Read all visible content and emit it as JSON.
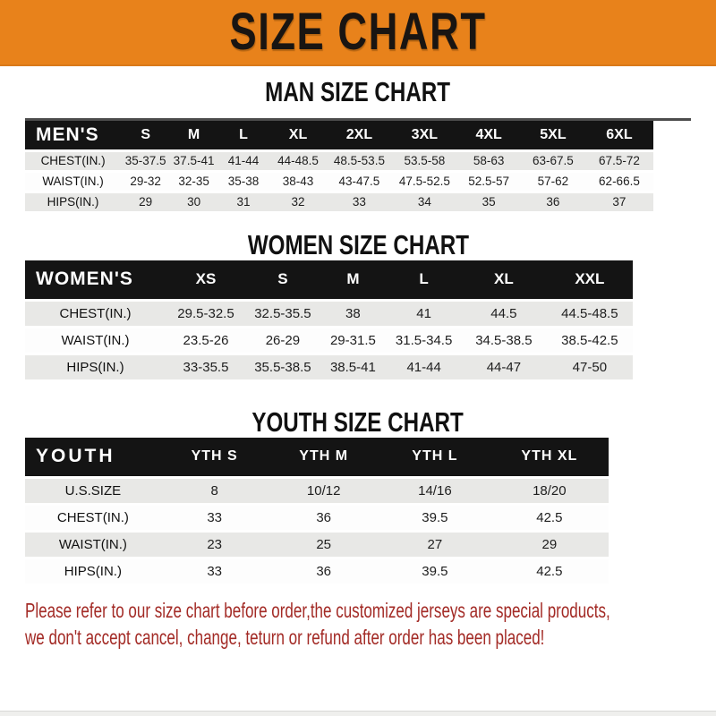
{
  "banner": {
    "title": "SIZE CHART",
    "bg_color": "#E8821B"
  },
  "colors": {
    "table_header_bg": "#141414",
    "row_stripe": "#e8e8e6",
    "disclaimer_red": "#a32b26"
  },
  "sections": [
    {
      "id": "men",
      "heading": "MAN SIZE CHART",
      "table": {
        "header": [
          "MEN'S",
          "S",
          "M",
          "L",
          "XL",
          "2XL",
          "3XL",
          "4XL",
          "5XL",
          "6XL"
        ],
        "rows": [
          [
            "CHEST(IN.)",
            "35-37.5",
            "37.5-41",
            "41-44",
            "44-48.5",
            "48.5-53.5",
            "53.5-58",
            "58-63",
            "63-67.5",
            "67.5-72"
          ],
          [
            "WAIST(IN.)",
            "29-32",
            "32-35",
            "35-38",
            "38-43",
            "43-47.5",
            "47.5-52.5",
            "52.5-57",
            "57-62",
            "62-66.5"
          ],
          [
            "HIPS(IN.)",
            "29",
            "30",
            "31",
            "32",
            "33",
            "34",
            "35",
            "36",
            "37"
          ]
        ]
      }
    },
    {
      "id": "women",
      "heading": "WOMEN SIZE CHART",
      "table": {
        "header": [
          "WOMEN'S",
          "XS",
          "S",
          "M",
          "L",
          "XL",
          "XXL"
        ],
        "rows": [
          [
            "CHEST(IN.)",
            "29.5-32.5",
            "32.5-35.5",
            "38",
            "41",
            "44.5",
            "44.5-48.5"
          ],
          [
            "WAIST(IN.)",
            "23.5-26",
            "26-29",
            "29-31.5",
            "31.5-34.5",
            "34.5-38.5",
            "38.5-42.5"
          ],
          [
            "HIPS(IN.)",
            "33-35.5",
            "35.5-38.5",
            "38.5-41",
            "41-44",
            "44-47",
            "47-50"
          ]
        ]
      }
    },
    {
      "id": "youth",
      "heading": "YOUTH SIZE CHART",
      "table": {
        "header": [
          "YOUTH",
          "YTH S",
          "YTH M",
          "YTH L",
          "YTH XL"
        ],
        "rows": [
          [
            "U.S.SIZE",
            "8",
            "10/12",
            "14/16",
            "18/20"
          ],
          [
            "CHEST(IN.)",
            "33",
            "36",
            "39.5",
            "42.5"
          ],
          [
            "WAIST(IN.)",
            "23",
            "25",
            "27",
            "29"
          ],
          [
            "HIPS(IN.)",
            "33",
            "36",
            "39.5",
            "42.5"
          ]
        ]
      }
    }
  ],
  "disclaimer": {
    "line1": "Please refer to our size chart before order,the customized jerseys are special products,",
    "line2": "we don't accept cancel, change, teturn or refund after order has been placed!"
  }
}
